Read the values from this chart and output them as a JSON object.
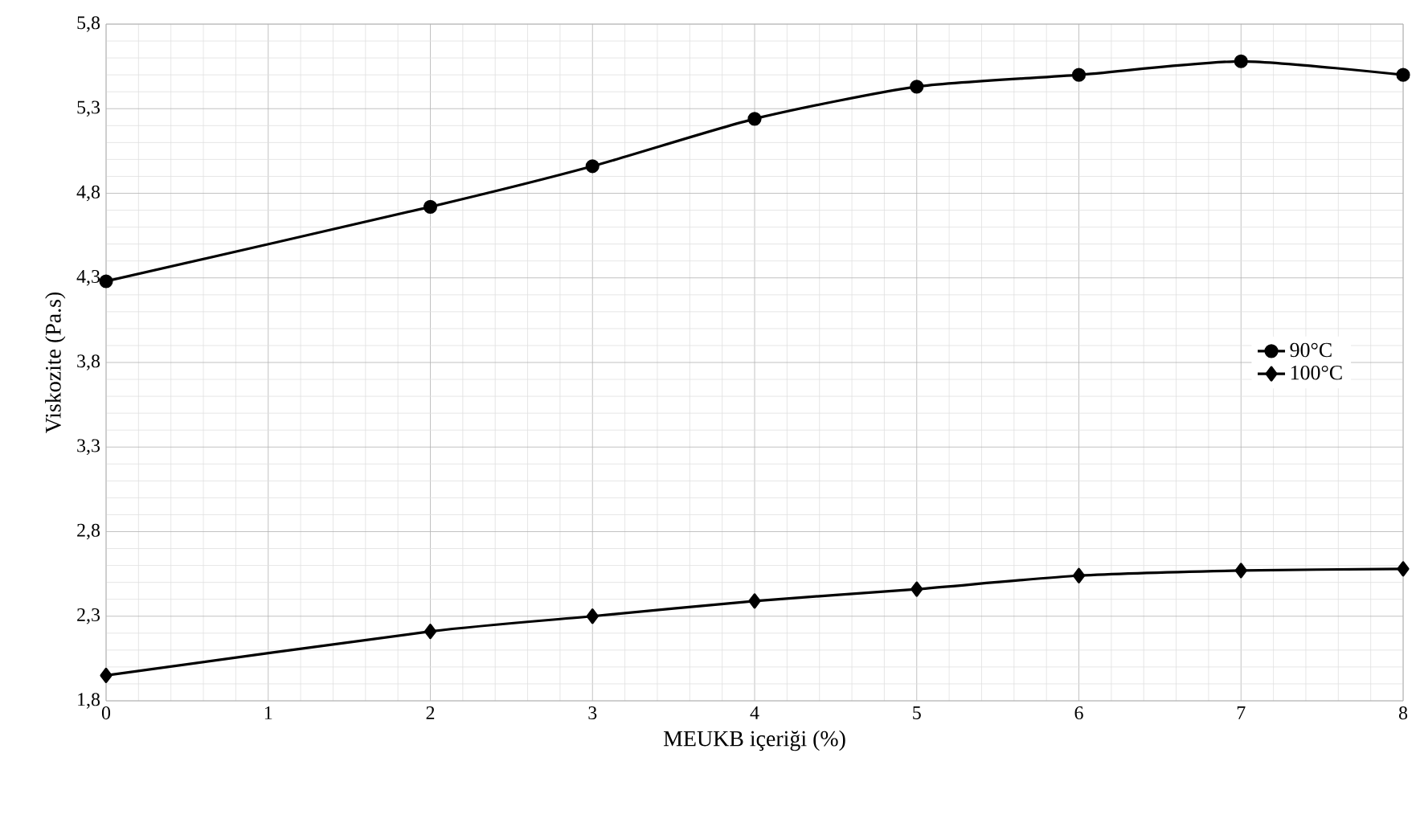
{
  "chart_data": {
    "type": "line",
    "xlabel": "MEUKB içeriği (%)",
    "ylabel": "Viskozite (Pa.s)",
    "xlim": [
      0,
      8
    ],
    "xticks": [
      0,
      1,
      2,
      3,
      4,
      5,
      6,
      7,
      8
    ],
    "ylim": [
      1.8,
      5.8
    ],
    "yticks": [
      {
        "value": 1.8,
        "label": "1,8"
      },
      {
        "value": 2.3,
        "label": "2,3"
      },
      {
        "value": 2.8,
        "label": "2,8"
      },
      {
        "value": 3.3,
        "label": "3,3"
      },
      {
        "value": 3.8,
        "label": "3,8"
      },
      {
        "value": 4.3,
        "label": "4,3"
      },
      {
        "value": 4.8,
        "label": "4,8"
      },
      {
        "value": 5.3,
        "label": "5,3"
      },
      {
        "value": 5.8,
        "label": "5,8"
      }
    ],
    "grid": true,
    "legend": "right",
    "series": [
      {
        "name": "90°C",
        "color": "#000000",
        "marker": "circle",
        "x": [
          0,
          2,
          3,
          4,
          5,
          6,
          7,
          8
        ],
        "values": [
          4.28,
          4.72,
          4.96,
          5.24,
          5.43,
          5.5,
          5.58,
          5.5
        ]
      },
      {
        "name": "100°C",
        "color": "#000000",
        "marker": "diamond",
        "x": [
          0,
          2,
          3,
          4,
          5,
          6,
          7,
          8
        ],
        "values": [
          1.95,
          2.21,
          2.3,
          2.39,
          2.46,
          2.54,
          2.57,
          2.58
        ]
      }
    ]
  }
}
